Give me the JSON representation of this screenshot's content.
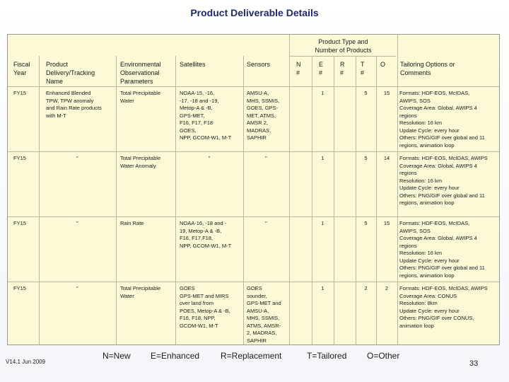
{
  "title": "Product Deliverable Details",
  "type_header": "Product Type and\nNumber of Products",
  "headers": {
    "fiscal_year": "Fiscal\nYear",
    "product": "Product\nDelivery/Tracking\nName",
    "env": "Environmental\nObservational\nParameters",
    "satellites": "Satellites",
    "sensors": "Sensors",
    "n": "N\n#",
    "e": "E\n#",
    "r": "R\n#",
    "t": "T\n#",
    "o": "O",
    "tailoring": "Tailoring Options or\nComments"
  },
  "rows": [
    {
      "fy": "FY15",
      "product": "Enhanced Blended\nTPW, TPW anomaly\nand Rain Rate products\nwith M-T",
      "env": "Total Precipitable\nWater",
      "satellites": "NOAA-15, -16,\n-17, -18 and -19,\nMetop-A & -B,\nGPS-MET,\nF16, F17, F18\nGOES,\nNPP, GCOM-W1, M-T",
      "sensors": "AMSU-A,\nMHS, SSMIS,\nGOES, GPS-\nMET, ATMS,\nAMSR 2,\nMADRAS,\nSAPHIR",
      "n": "",
      "e": "1",
      "r": "",
      "t": "5",
      "o": "15",
      "tailoring": "Formats: HDF-EOS, McIDAS,\nAWIPS, SOS\nCoverage Area: Global, AWIPS 4\nregions\nResolution: 16 km\nUpdate Cycle: every hour\nOthers: PNG/GIF over global and 11\nregions, animation loop"
    },
    {
      "fy": "FY15",
      "product": "\"",
      "env": "Total Precipitable\nWater Anomaly",
      "satellites": "\"",
      "sensors": "\"",
      "n": "",
      "e": "1",
      "r": "",
      "t": "5",
      "o": "14",
      "tailoring": "Formats: HDF-EOS, McIDAS, AWIPS\nCoverage Area: Global, AWIPS 4\nregions\nResolution: 16 km\nUpdate Cycle: every hour\nOthers: PNG/GIF over global and 11\nregions, animation loop"
    },
    {
      "fy": "FY15",
      "product": "\"",
      "env": "Rain Rate",
      "satellites": "NOAA-16, -18 and -\n19, Metop-A & -B,\nF16, F17,F18,\nNPP, GCOM-W1, M-T",
      "sensors": "\"",
      "n": "",
      "e": "1",
      "r": "",
      "t": "5",
      "o": "15",
      "tailoring": "Formats: HDF-EOS, McIDAS,\nAWIPS, SOS\nCoverage Area: Global, AWIPS 4\nregions\nResolution: 16 km\nUpdate Cycle: every hour\nOthers: PNG/GIF over global and 11\nregions, animation loop"
    },
    {
      "fy": "FY15",
      "product": "\"",
      "env": "Total Precipitable\nWater",
      "satellites": "GOES\nGPS-MET and MIRS\nover land from\nPOES, Metop-A & -B,\nF16, F18, NPP,\nGCOM-W1, M-T",
      "sensors": "GOES\nsounder,\nGPS-MET and\nAMSU-A,\nMHS, SSMIS,\nATMS, AMSR-\n2, MADRAS,\nSAPHIR",
      "n": "",
      "e": "1",
      "r": "",
      "t": "2",
      "o": "2",
      "tailoring": "Formats: HDF-EOS, McIDAS, AWIPS\nCoverage Area: CONUS\nResolution: 8km\nUpdate Cycle: every hour\nOthers: PNG/GIF over CONUS,\nanimation loop"
    }
  ],
  "legend": {
    "new": "N=New",
    "enhanced": "E=Enhanced",
    "replacement": "R=Replacement",
    "tailored": "T=Tailored",
    "other": "O=Other"
  },
  "version": "V14.1 Jun 2009",
  "page_number": "33"
}
